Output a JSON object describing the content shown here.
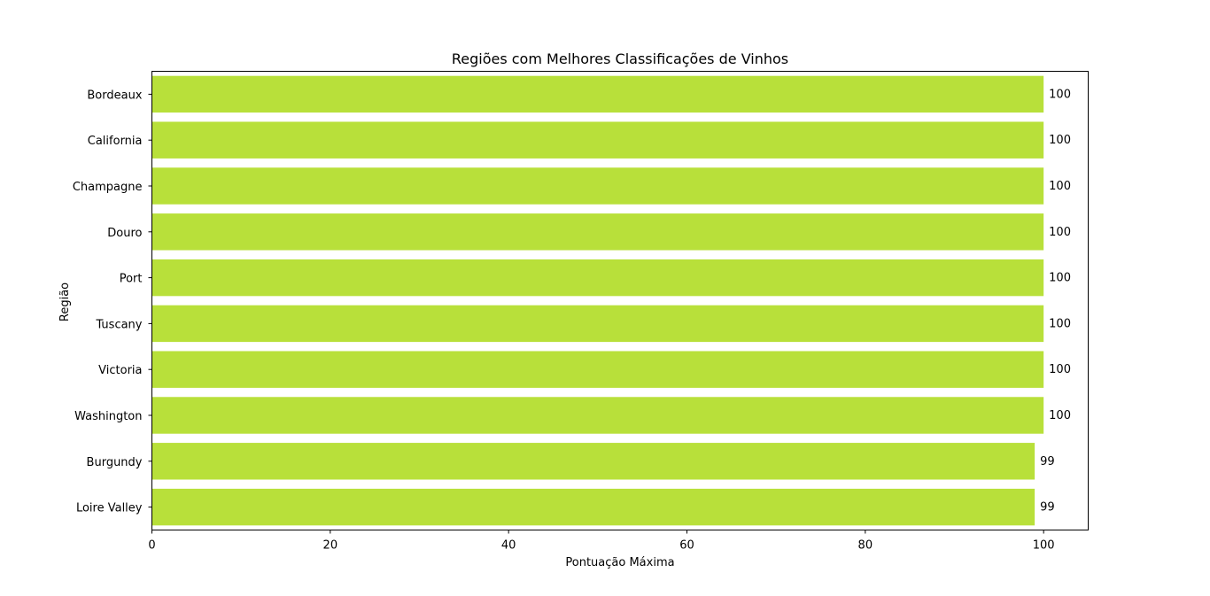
{
  "chart_data": {
    "type": "bar",
    "orientation": "horizontal",
    "title": "Regiões com Melhores Classificações de Vinhos",
    "xlabel": "Pontuação Máxima",
    "ylabel": "Região",
    "categories": [
      "Bordeaux",
      "California",
      "Champagne",
      "Douro",
      "Port",
      "Tuscany",
      "Victoria",
      "Washington",
      "Burgundy",
      "Loire Valley"
    ],
    "values": [
      100,
      100,
      100,
      100,
      100,
      100,
      100,
      100,
      99,
      99
    ],
    "data_labels": [
      "100",
      "100",
      "100",
      "100",
      "100",
      "100",
      "100",
      "100",
      "99",
      "99"
    ],
    "xlim": [
      0,
      105
    ],
    "xticks": [
      0,
      20,
      40,
      60,
      80,
      100
    ],
    "xtick_labels": [
      "0",
      "20",
      "40",
      "60",
      "80",
      "100"
    ],
    "grid": false,
    "bar_color": "#b8e03a"
  }
}
